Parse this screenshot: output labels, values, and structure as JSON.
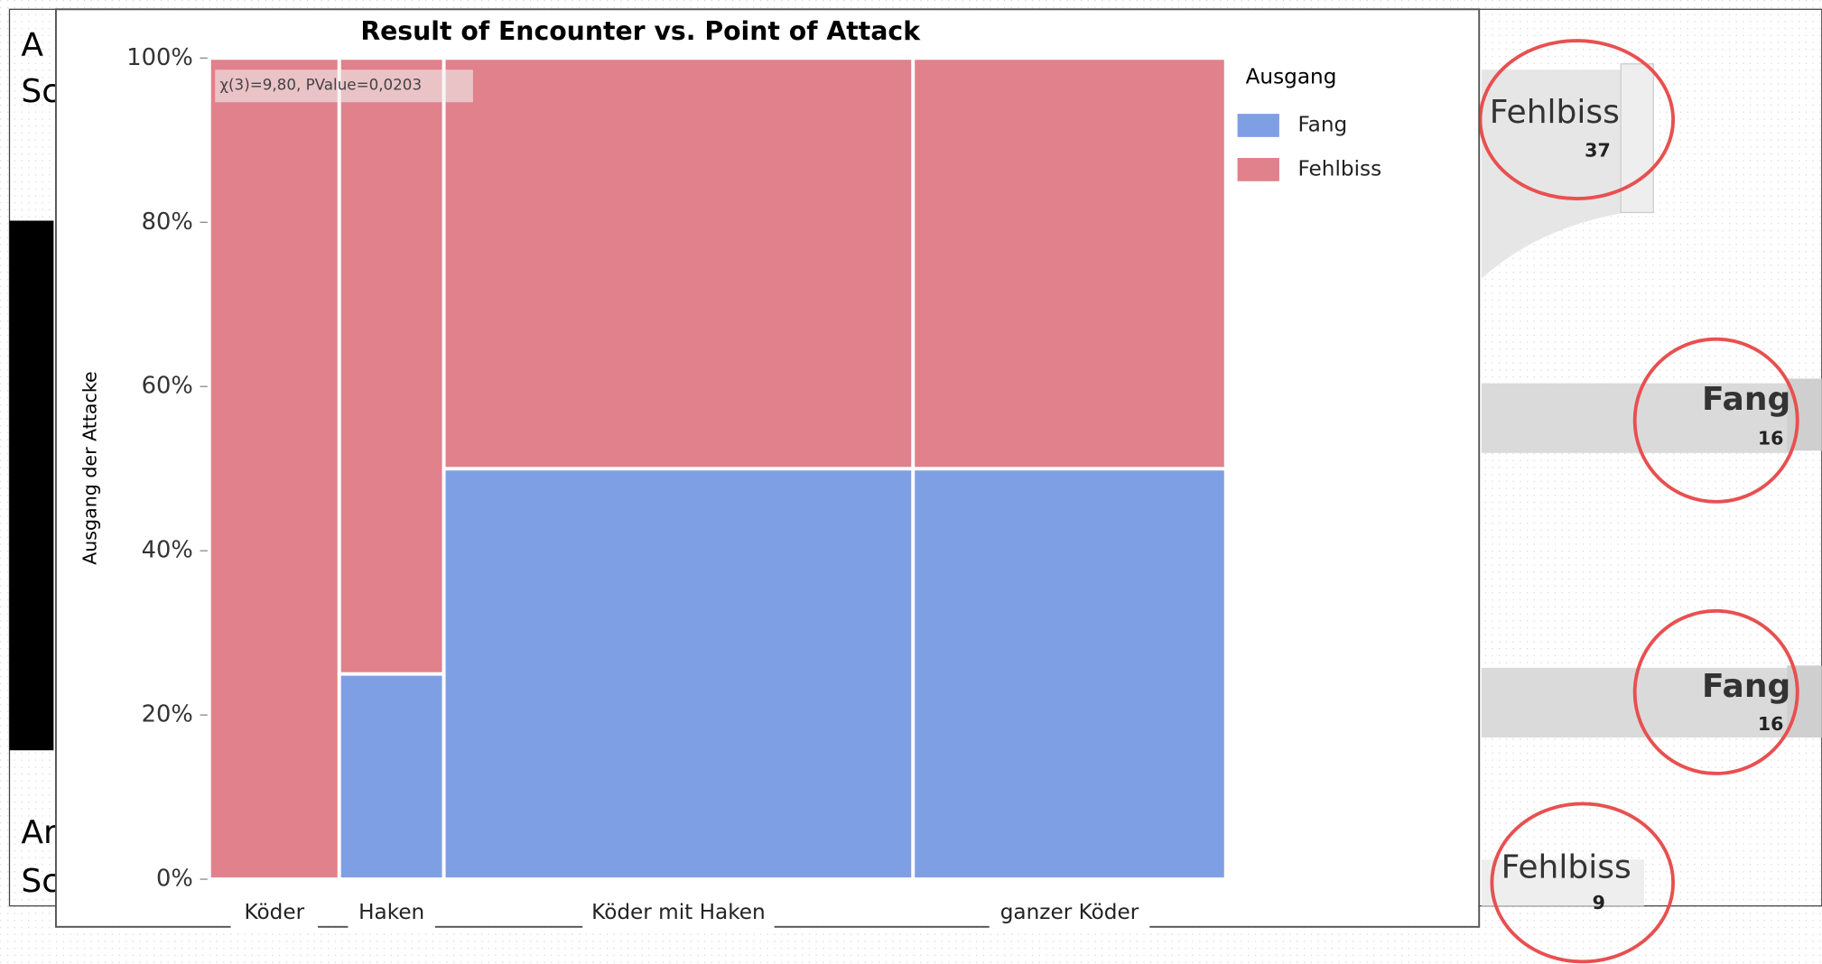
{
  "slide": {
    "left_texts": [
      "A",
      "Sc",
      "Ar",
      "Sc"
    ],
    "flow_labels": [
      {
        "label": "Fehlbiss",
        "count": "37"
      },
      {
        "label": "Fang",
        "count": "16"
      },
      {
        "label": "Fang",
        "count": "16"
      },
      {
        "label": "Fehlbiss",
        "count": "9"
      }
    ]
  },
  "chart_data": {
    "type": "mosaic",
    "title": "Result of Encounter vs. Point of Attack",
    "y_label": "Ausgang der Attacke",
    "annotation": "χ(3)=9,80, PValue=0,0203",
    "legend_title": "Ausgang",
    "categories": [
      "Köder",
      "Haken",
      "Köder mit Haken",
      "ganzer Köder"
    ],
    "widths": [
      12.8,
      10.3,
      46.2,
      30.8
    ],
    "series": [
      {
        "name": "Fang",
        "color": "#7f9fe5",
        "values": [
          0,
          25,
          50,
          50
        ]
      },
      {
        "name": "Fehlbiss",
        "color": "#e0818b",
        "values": [
          100,
          75,
          50,
          50
        ]
      }
    ],
    "ylim": [
      0,
      100
    ],
    "yticks": [
      {
        "value": 0,
        "label": "0%"
      },
      {
        "value": 20,
        "label": "20%"
      },
      {
        "value": 40,
        "label": "40%"
      },
      {
        "value": 60,
        "label": "60%"
      },
      {
        "value": 80,
        "label": "80%"
      },
      {
        "value": 100,
        "label": "100%"
      }
    ]
  }
}
